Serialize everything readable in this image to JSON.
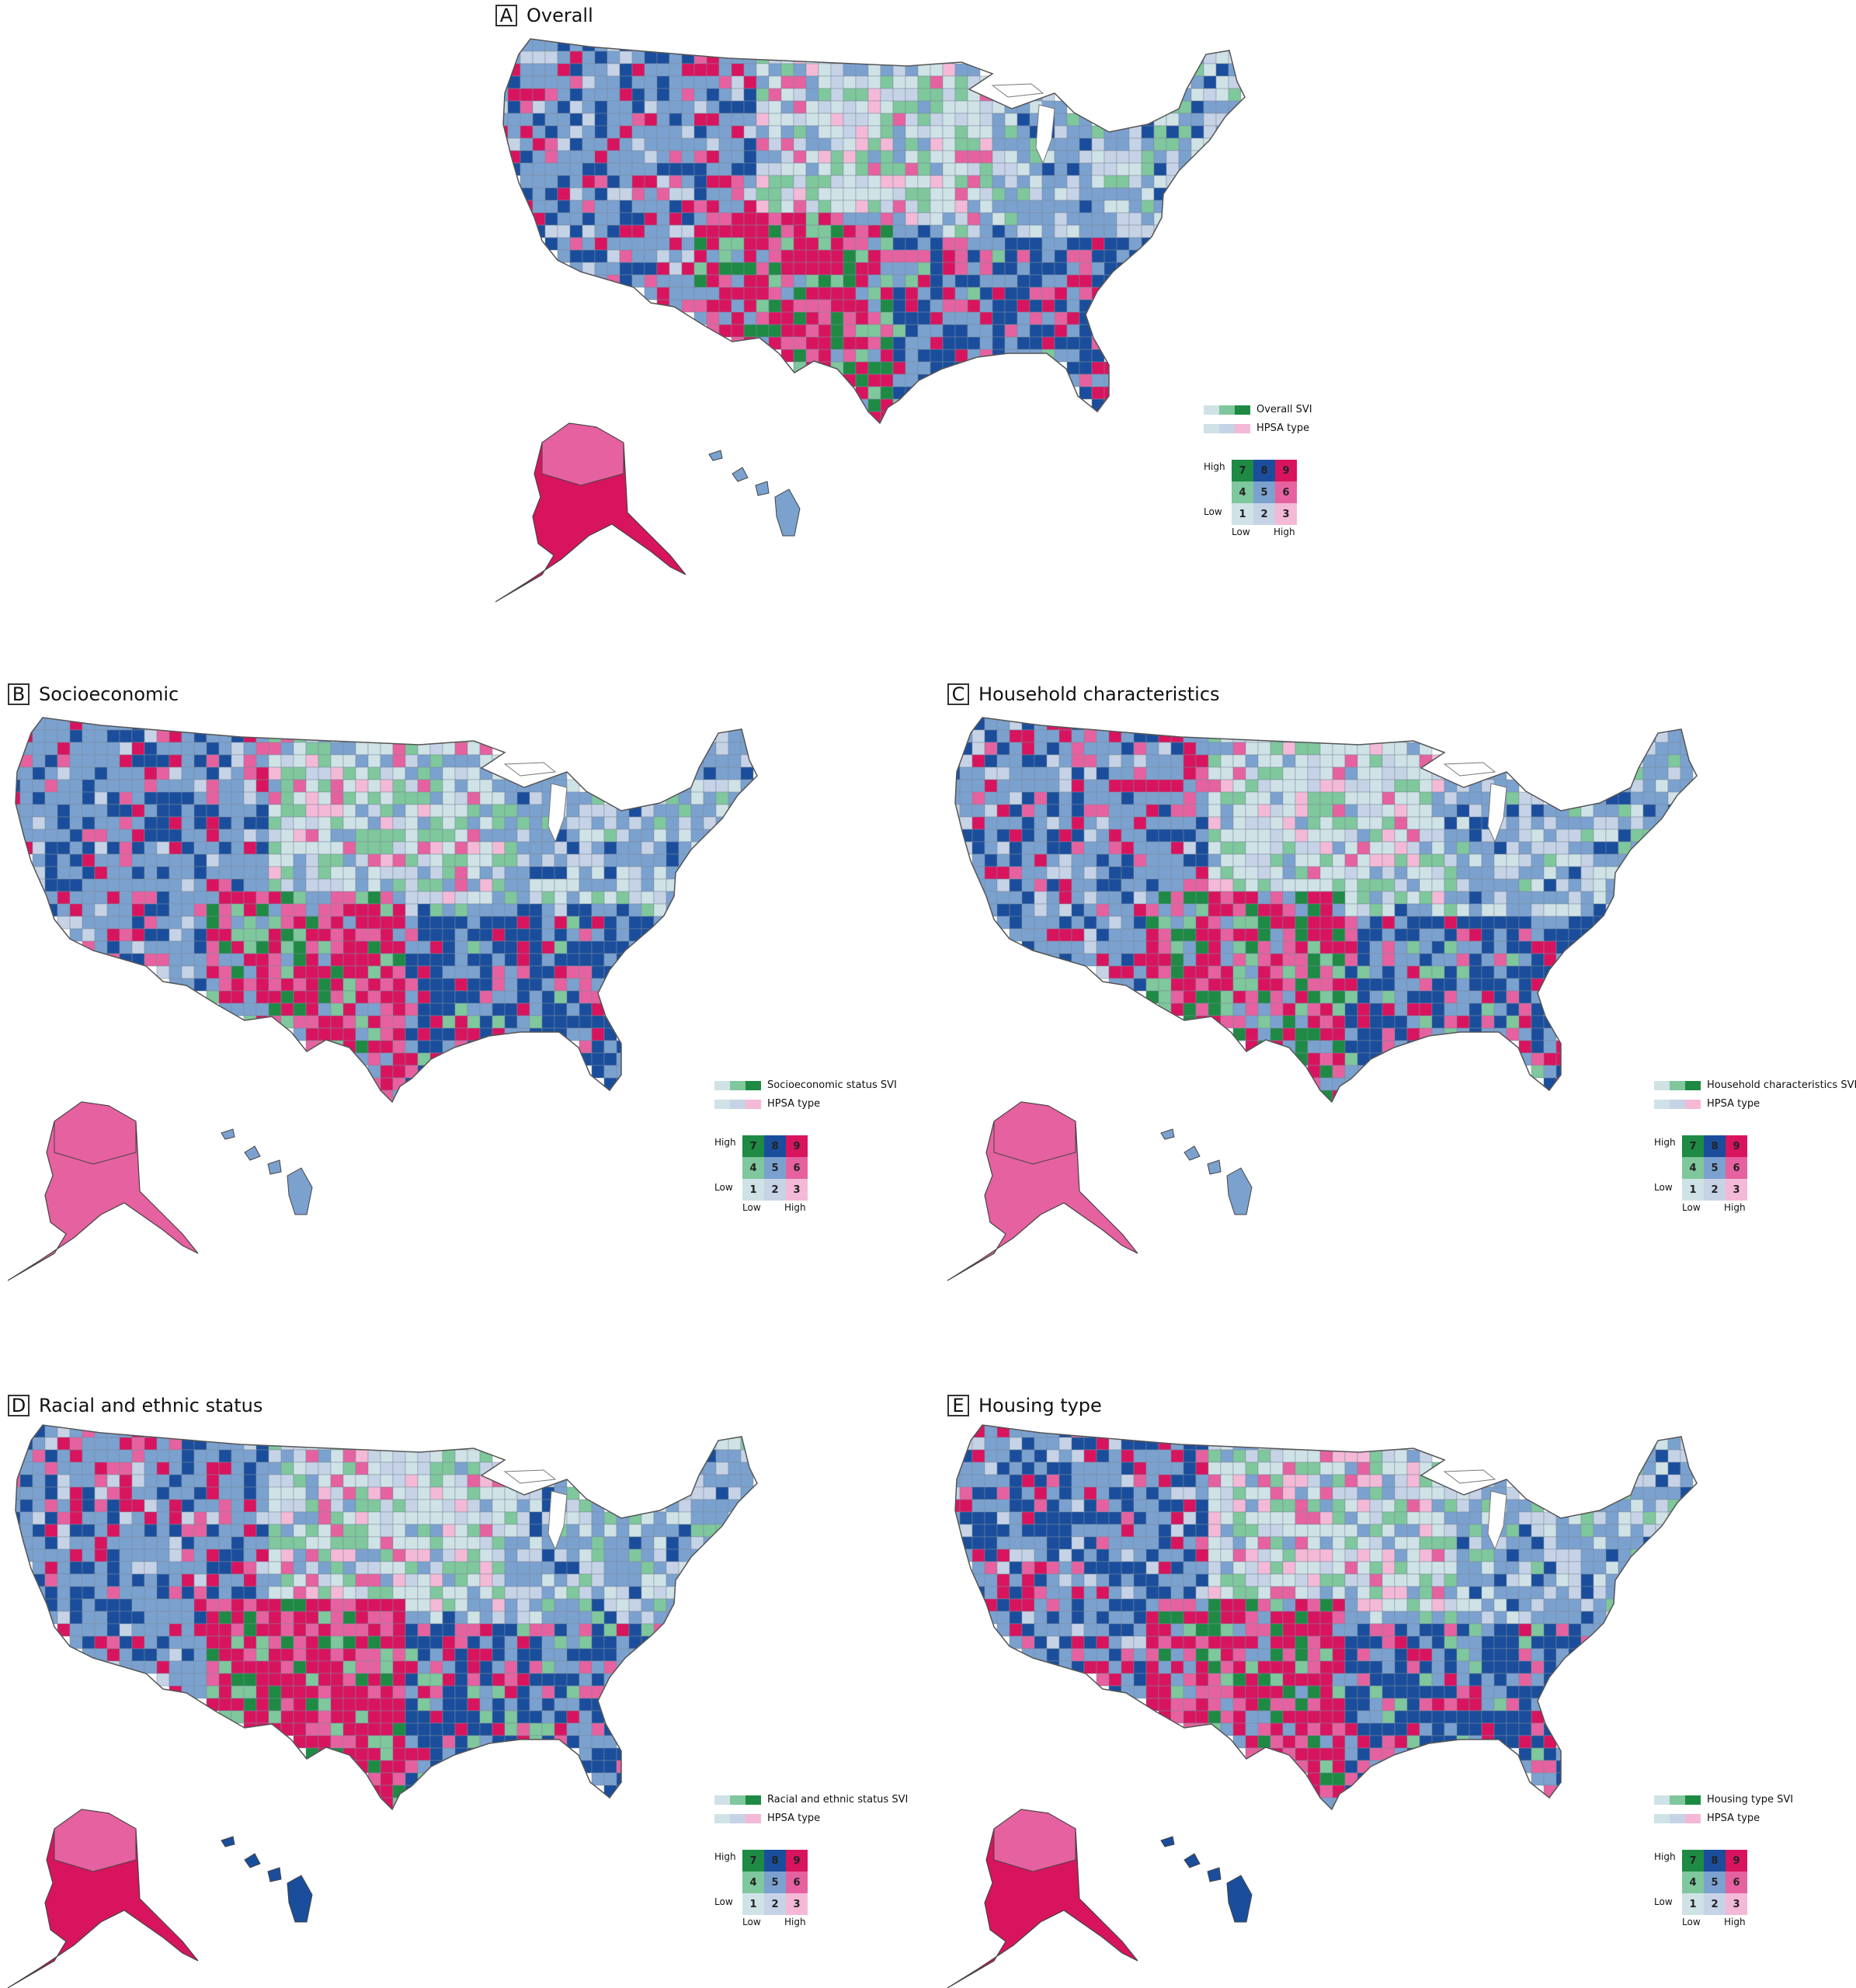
{
  "palette": {
    "c1": "#cfe2e6",
    "c2": "#c6d3e6",
    "c3": "#f4b9d6",
    "c4": "#7fc79c",
    "c5": "#7ba1cf",
    "c6": "#e6619f",
    "c7": "#1e8a44",
    "c8": "#1a4e9c",
    "c9": "#d8145f",
    "ramp_svi": [
      "#cfe2e6",
      "#7fc79c",
      "#1e8a44"
    ],
    "ramp_hpsa": [
      "#cfe2e6",
      "#c6d3e6",
      "#f4b9d6"
    ]
  },
  "legend_common": {
    "hpsa_label": "HPSA type",
    "high": "High",
    "low": "Low",
    "x_low": "Low",
    "x_high": "High",
    "cells": [
      "7",
      "8",
      "9",
      "4",
      "5",
      "6",
      "1",
      "2",
      "3"
    ]
  },
  "panels": [
    {
      "letter": "A",
      "title": "Overall",
      "svi_label": "Overall SVI"
    },
    {
      "letter": "B",
      "title": "Socioeconomic",
      "svi_label": "Socioeconomic status SVI"
    },
    {
      "letter": "C",
      "title": "Household characteristics",
      "svi_label": "Household characteristics SVI"
    },
    {
      "letter": "D",
      "title": "Racial and ethnic status",
      "svi_label": "Racial and ethnic status SVI"
    },
    {
      "letter": "E",
      "title": "Housing type",
      "svi_label": "Housing type SVI"
    }
  ]
}
